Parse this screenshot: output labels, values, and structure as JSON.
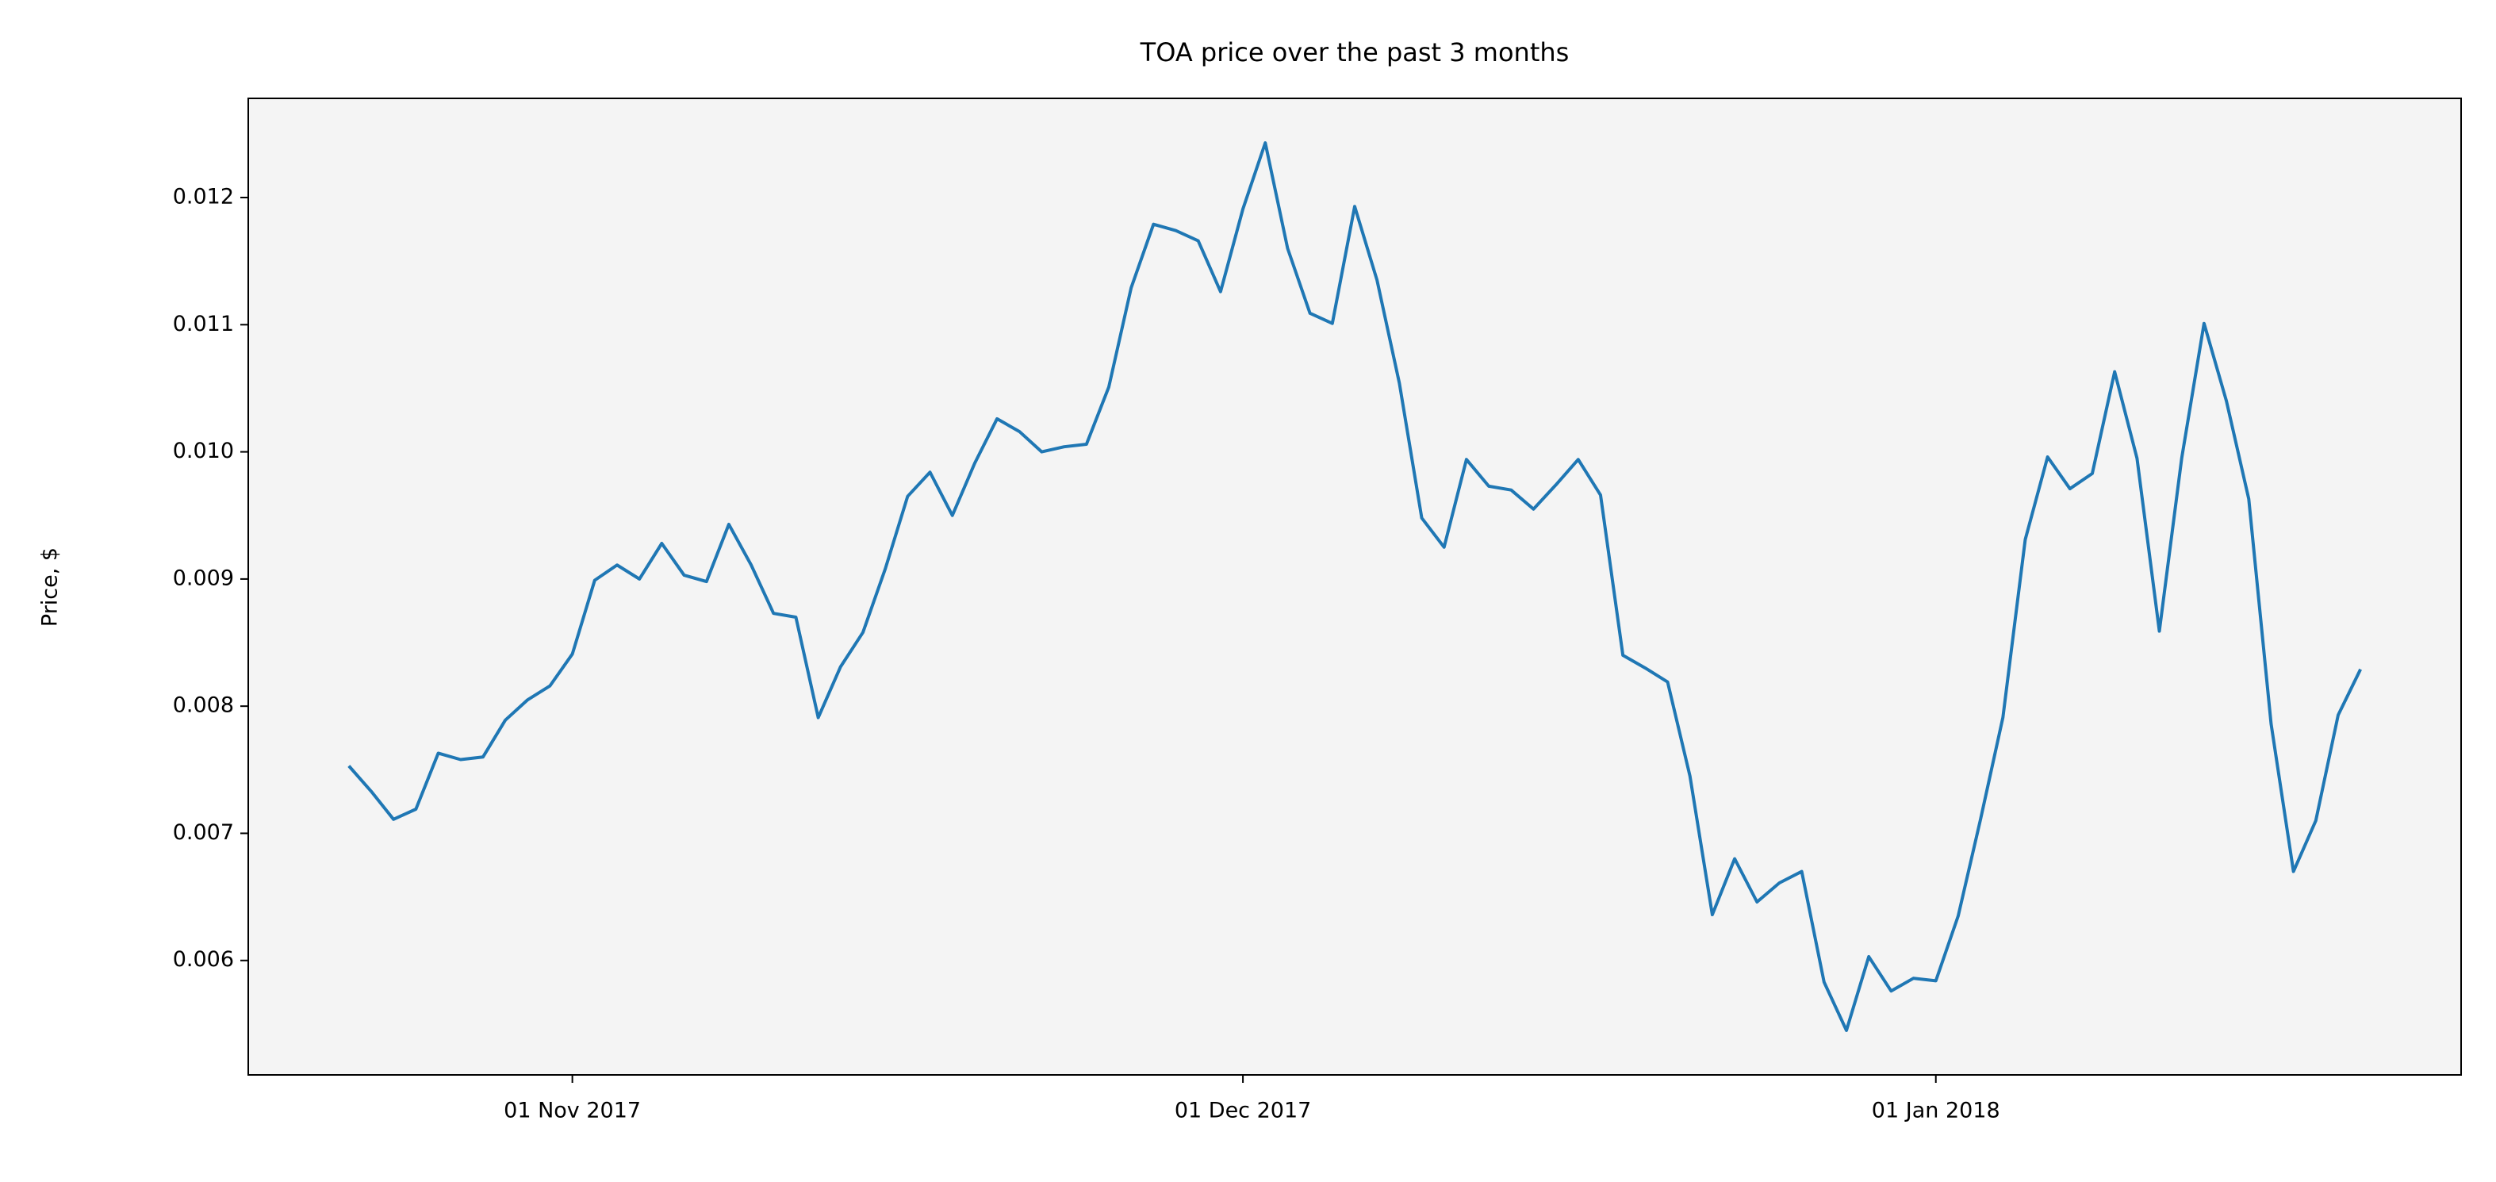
{
  "chart_data": {
    "type": "line",
    "title": "TOA price over the past 3 months",
    "ylabel": "Price, $",
    "x": [
      "2017-10-22",
      "2017-10-23",
      "2017-10-24",
      "2017-10-25",
      "2017-10-26",
      "2017-10-27",
      "2017-10-28",
      "2017-10-29",
      "2017-10-30",
      "2017-10-31",
      "2017-11-01",
      "2017-11-02",
      "2017-11-03",
      "2017-11-04",
      "2017-11-05",
      "2017-11-06",
      "2017-11-07",
      "2017-11-08",
      "2017-11-09",
      "2017-11-10",
      "2017-11-11",
      "2017-11-12",
      "2017-11-13",
      "2017-11-14",
      "2017-11-15",
      "2017-11-16",
      "2017-11-17",
      "2017-11-18",
      "2017-11-19",
      "2017-11-20",
      "2017-11-21",
      "2017-11-22",
      "2017-11-23",
      "2017-11-24",
      "2017-11-25",
      "2017-11-26",
      "2017-11-27",
      "2017-11-28",
      "2017-11-29",
      "2017-11-30",
      "2017-12-01",
      "2017-12-02",
      "2017-12-03",
      "2017-12-04",
      "2017-12-05",
      "2017-12-06",
      "2017-12-07",
      "2017-12-08",
      "2017-12-09",
      "2017-12-10",
      "2017-12-11",
      "2017-12-12",
      "2017-12-13",
      "2017-12-14",
      "2017-12-15",
      "2017-12-16",
      "2017-12-17",
      "2017-12-18",
      "2017-12-19",
      "2017-12-20",
      "2017-12-21",
      "2017-12-22",
      "2017-12-23",
      "2017-12-24",
      "2017-12-25",
      "2017-12-26",
      "2017-12-27",
      "2017-12-28",
      "2017-12-29",
      "2017-12-30",
      "2017-12-31",
      "2018-01-01",
      "2018-01-02",
      "2018-01-03",
      "2018-01-04",
      "2018-01-05",
      "2018-01-06",
      "2018-01-07",
      "2018-01-08",
      "2018-01-09",
      "2018-01-10",
      "2018-01-11",
      "2018-01-12",
      "2018-01-13",
      "2018-01-14",
      "2018-01-15",
      "2018-01-16",
      "2018-01-17",
      "2018-01-18",
      "2018-01-19",
      "2018-01-20"
    ],
    "series": [
      {
        "color": "#1f77b4",
        "values": [
          0.00753,
          0.00733,
          0.00711,
          0.00719,
          0.00763,
          0.00758,
          0.0076,
          0.00789,
          0.00805,
          0.00816,
          0.00841,
          0.00899,
          0.00911,
          0.009,
          0.00928,
          0.00903,
          0.00898,
          0.00943,
          0.00911,
          0.00873,
          0.0087,
          0.00791,
          0.00831,
          0.00858,
          0.00908,
          0.00965,
          0.00984,
          0.0095,
          0.00991,
          0.01026,
          0.01016,
          0.01,
          0.01004,
          0.01006,
          0.01051,
          0.01129,
          0.01179,
          0.01174,
          0.01166,
          0.01126,
          0.01191,
          0.01243,
          0.0116,
          0.01109,
          0.01101,
          0.01193,
          0.01135,
          0.01054,
          0.00948,
          0.00925,
          0.00994,
          0.00973,
          0.0097,
          0.00955,
          0.00974,
          0.00994,
          0.00966,
          0.0084,
          0.0083,
          0.00819,
          0.00745,
          0.00636,
          0.0068,
          0.00646,
          0.00661,
          0.0067,
          0.00583,
          0.00545,
          0.00603,
          0.00576,
          0.00586,
          0.00584,
          0.00635,
          0.00711,
          0.00791,
          0.00931,
          0.00996,
          0.00971,
          0.00983,
          0.01063,
          0.00995,
          0.00859,
          0.00995,
          0.01101,
          0.0104,
          0.00963,
          0.00786,
          0.0067,
          0.0071,
          0.00793,
          0.00829
        ]
      }
    ],
    "xlim": [
      "2017-10-17T12:00",
      "2018-01-24T12:00"
    ],
    "xticks": [
      {
        "value": "2017-11-01",
        "label": "01 Nov 2017"
      },
      {
        "value": "2017-12-01",
        "label": "01 Dec 2017"
      },
      {
        "value": "2018-01-01",
        "label": "01 Jan 2018"
      }
    ],
    "ylim": [
      0.0051,
      0.01278
    ],
    "yticks": [
      0.006,
      0.007,
      0.008,
      0.009,
      {
        "value": 0.01,
        "label": "0.010"
      },
      0.011,
      0.012
    ],
    "background": "#f4f4f4",
    "grid": false
  }
}
